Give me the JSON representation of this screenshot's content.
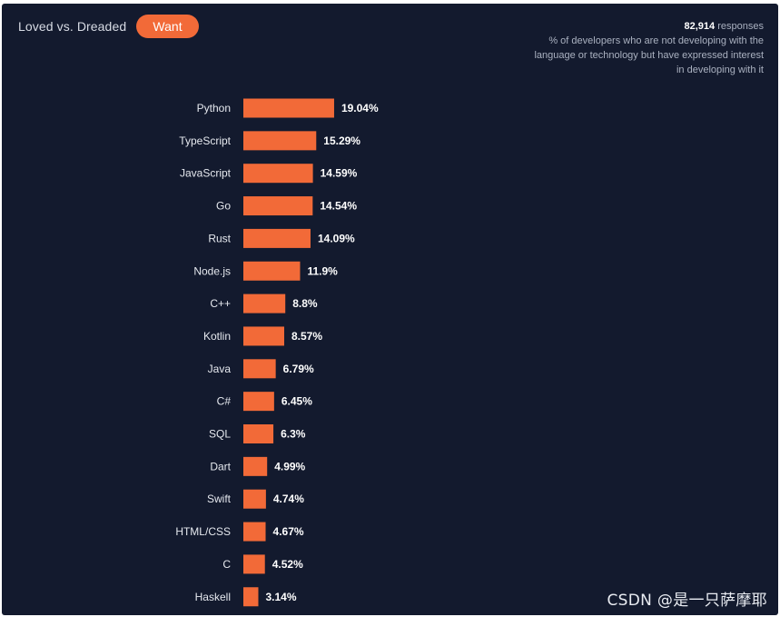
{
  "header": {
    "toggle_label": "Loved vs. Dreaded",
    "active_tab": "Want"
  },
  "meta": {
    "response_count": "82,914",
    "response_word": "responses",
    "description": "% of developers who are not developing with the language or technology but have expressed interest in developing with it"
  },
  "watermark": "CSDN @是一只萨摩耶",
  "colors": {
    "background": "#131a2e",
    "bar": "#f26a38"
  },
  "chart_data": {
    "type": "bar",
    "orientation": "horizontal",
    "categories": [
      "Python",
      "TypeScript",
      "JavaScript",
      "Go",
      "Rust",
      "Node.js",
      "C++",
      "Kotlin",
      "Java",
      "C#",
      "SQL",
      "Dart",
      "Swift",
      "HTML/CSS",
      "C",
      "Haskell"
    ],
    "values": [
      19.04,
      15.29,
      14.59,
      14.54,
      14.09,
      11.9,
      8.8,
      8.57,
      6.79,
      6.45,
      6.3,
      4.99,
      4.74,
      4.67,
      4.52,
      3.14
    ],
    "value_labels": [
      "19.04%",
      "15.29%",
      "14.59%",
      "14.54%",
      "14.09%",
      "11.9%",
      "8.8%",
      "8.57%",
      "6.79%",
      "6.45%",
      "6.3%",
      "4.99%",
      "4.74%",
      "4.67%",
      "4.52%",
      "3.14%"
    ],
    "unit": "%",
    "grid": false,
    "legend": "none"
  }
}
